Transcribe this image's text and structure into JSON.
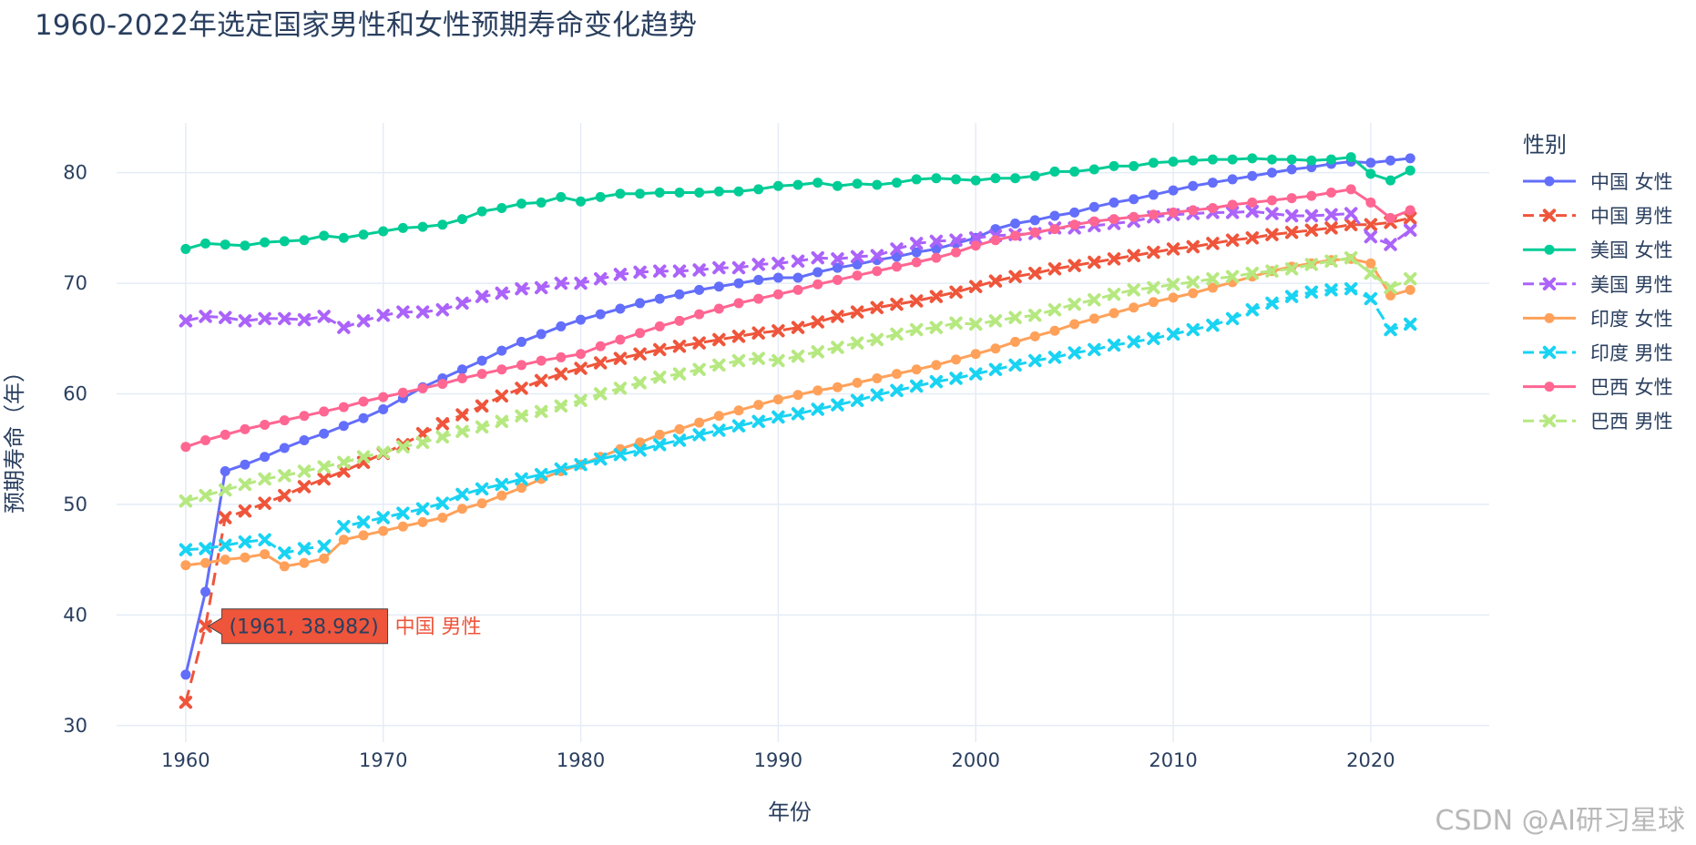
{
  "page": {
    "title": "1960-2022年选定国家男性和女性预期寿命变化趋势",
    "watermark": "CSDN @AI研习星球"
  },
  "chart_data": {
    "type": "line",
    "title": "1960-2022年选定国家男性和女性预期寿命变化趋势",
    "xlabel": "年份",
    "ylabel": "预期寿命（年）",
    "xlim": [
      1956.5,
      2026
    ],
    "ylim": [
      28.5,
      84.5
    ],
    "xticks": [
      1960,
      1970,
      1980,
      1990,
      2000,
      2010,
      2020
    ],
    "yticks": [
      30,
      40,
      50,
      60,
      70,
      80
    ],
    "grid": true,
    "legend": {
      "title": "性别",
      "position": "right"
    },
    "x": [
      1960,
      1961,
      1962,
      1963,
      1964,
      1965,
      1966,
      1967,
      1968,
      1969,
      1970,
      1971,
      1972,
      1973,
      1974,
      1975,
      1976,
      1977,
      1978,
      1979,
      1980,
      1981,
      1982,
      1983,
      1984,
      1985,
      1986,
      1987,
      1988,
      1989,
      1990,
      1991,
      1992,
      1993,
      1994,
      1995,
      1996,
      1997,
      1998,
      1999,
      2000,
      2001,
      2002,
      2003,
      2004,
      2005,
      2006,
      2007,
      2008,
      2009,
      2010,
      2011,
      2012,
      2013,
      2014,
      2015,
      2016,
      2017,
      2018,
      2019,
      2020,
      2021,
      2022
    ],
    "series": [
      {
        "name": "中国 女性",
        "color": "#636efa",
        "dash": "solid",
        "marker": "circle",
        "values": [
          34.6,
          42.1,
          53.0,
          53.6,
          54.3,
          55.1,
          55.8,
          56.4,
          57.1,
          57.8,
          58.6,
          59.6,
          60.6,
          61.4,
          62.2,
          63.0,
          63.9,
          64.7,
          65.4,
          66.1,
          66.7,
          67.2,
          67.7,
          68.2,
          68.6,
          69.0,
          69.4,
          69.7,
          70.0,
          70.3,
          70.5,
          70.5,
          71.0,
          71.4,
          71.7,
          72.1,
          72.4,
          72.8,
          73.1,
          73.6,
          74.1,
          74.9,
          75.4,
          75.7,
          76.1,
          76.4,
          76.9,
          77.3,
          77.6,
          78.0,
          78.4,
          78.8,
          79.1,
          79.4,
          79.7,
          80.0,
          80.3,
          80.5,
          80.8,
          81.0,
          80.9,
          81.1,
          81.3
        ]
      },
      {
        "name": "中国 男性",
        "color": "#ef553b",
        "dash": "dash",
        "marker": "x",
        "values": [
          32.1,
          38.982,
          48.8,
          49.4,
          50.1,
          50.8,
          51.6,
          52.3,
          53.0,
          53.8,
          54.6,
          55.4,
          56.4,
          57.3,
          58.1,
          58.9,
          59.8,
          60.5,
          61.2,
          61.8,
          62.3,
          62.8,
          63.2,
          63.6,
          64.0,
          64.3,
          64.6,
          64.9,
          65.2,
          65.5,
          65.7,
          66.0,
          66.5,
          67.0,
          67.4,
          67.8,
          68.1,
          68.4,
          68.8,
          69.2,
          69.7,
          70.2,
          70.6,
          70.9,
          71.3,
          71.6,
          71.9,
          72.2,
          72.5,
          72.8,
          73.1,
          73.3,
          73.6,
          73.9,
          74.1,
          74.4,
          74.6,
          74.8,
          75.0,
          75.3,
          75.3,
          75.5,
          75.9
        ]
      },
      {
        "name": "美国 女性",
        "color": "#00cc96",
        "dash": "solid",
        "marker": "circle",
        "values": [
          73.1,
          73.6,
          73.5,
          73.4,
          73.7,
          73.8,
          73.9,
          74.3,
          74.1,
          74.4,
          74.7,
          75.0,
          75.1,
          75.3,
          75.8,
          76.5,
          76.8,
          77.2,
          77.3,
          77.8,
          77.4,
          77.8,
          78.1,
          78.1,
          78.2,
          78.2,
          78.2,
          78.3,
          78.3,
          78.5,
          78.8,
          78.9,
          79.1,
          78.8,
          79.0,
          78.9,
          79.1,
          79.4,
          79.5,
          79.4,
          79.3,
          79.5,
          79.5,
          79.7,
          80.1,
          80.1,
          80.3,
          80.6,
          80.6,
          80.9,
          81.0,
          81.1,
          81.2,
          81.2,
          81.3,
          81.2,
          81.2,
          81.1,
          81.2,
          81.4,
          79.9,
          79.3,
          80.2
        ]
      },
      {
        "name": "美国 男性",
        "color": "#ab63fa",
        "dash": "dash",
        "marker": "x",
        "values": [
          66.6,
          67.0,
          66.9,
          66.6,
          66.8,
          66.8,
          66.7,
          67.0,
          66.0,
          66.6,
          67.1,
          67.4,
          67.4,
          67.6,
          68.2,
          68.8,
          69.1,
          69.5,
          69.6,
          70.0,
          70.0,
          70.4,
          70.8,
          71.0,
          71.1,
          71.1,
          71.2,
          71.4,
          71.4,
          71.7,
          71.8,
          72.0,
          72.3,
          72.2,
          72.4,
          72.5,
          73.1,
          73.6,
          73.8,
          73.9,
          74.1,
          74.3,
          74.4,
          74.5,
          75.0,
          75.0,
          75.2,
          75.4,
          75.6,
          76.0,
          76.2,
          76.3,
          76.4,
          76.4,
          76.5,
          76.3,
          76.1,
          76.1,
          76.2,
          76.3,
          74.2,
          73.5,
          74.8
        ]
      },
      {
        "name": "印度 女性",
        "color": "#ffa15a",
        "dash": "solid",
        "marker": "circle",
        "values": [
          44.5,
          44.7,
          45.0,
          45.2,
          45.5,
          44.4,
          44.7,
          45.1,
          46.8,
          47.2,
          47.6,
          48.0,
          48.4,
          48.8,
          49.6,
          50.1,
          50.8,
          51.5,
          52.3,
          53.0,
          53.6,
          54.3,
          55.0,
          55.6,
          56.3,
          56.8,
          57.4,
          58.0,
          58.5,
          59.0,
          59.5,
          59.9,
          60.3,
          60.6,
          61.0,
          61.4,
          61.8,
          62.2,
          62.6,
          63.1,
          63.6,
          64.1,
          64.7,
          65.2,
          65.7,
          66.3,
          66.8,
          67.3,
          67.8,
          68.3,
          68.7,
          69.1,
          69.6,
          70.1,
          70.6,
          71.1,
          71.5,
          71.8,
          72.1,
          72.2,
          71.8,
          68.9,
          69.4
        ]
      },
      {
        "name": "印度 男性",
        "color": "#19d3f3",
        "dash": "dash",
        "marker": "x",
        "values": [
          45.9,
          46.0,
          46.3,
          46.6,
          46.8,
          45.6,
          46.0,
          46.2,
          48.0,
          48.4,
          48.8,
          49.2,
          49.6,
          50.1,
          50.9,
          51.4,
          51.8,
          52.3,
          52.7,
          53.2,
          53.6,
          54.1,
          54.5,
          54.9,
          55.4,
          55.8,
          56.3,
          56.7,
          57.1,
          57.5,
          57.9,
          58.2,
          58.6,
          59.0,
          59.4,
          59.9,
          60.3,
          60.7,
          61.1,
          61.4,
          61.8,
          62.2,
          62.6,
          63.0,
          63.3,
          63.7,
          64.0,
          64.4,
          64.7,
          65.0,
          65.4,
          65.8,
          66.2,
          66.8,
          67.6,
          68.2,
          68.8,
          69.2,
          69.4,
          69.5,
          68.6,
          65.8,
          66.3
        ]
      },
      {
        "name": "巴西 女性",
        "color": "#ff6692",
        "dash": "solid",
        "marker": "circle",
        "values": [
          55.2,
          55.8,
          56.3,
          56.8,
          57.2,
          57.6,
          58.0,
          58.4,
          58.8,
          59.3,
          59.7,
          60.1,
          60.5,
          60.9,
          61.4,
          61.8,
          62.2,
          62.6,
          63.0,
          63.3,
          63.6,
          64.3,
          64.9,
          65.5,
          66.1,
          66.6,
          67.2,
          67.7,
          68.2,
          68.6,
          69.0,
          69.4,
          69.9,
          70.3,
          70.7,
          71.1,
          71.5,
          71.9,
          72.3,
          72.8,
          73.4,
          73.9,
          74.3,
          74.6,
          74.9,
          75.3,
          75.6,
          75.8,
          76.0,
          76.2,
          76.4,
          76.6,
          76.8,
          77.1,
          77.3,
          77.5,
          77.7,
          77.9,
          78.2,
          78.5,
          77.3,
          75.9,
          76.6
        ]
      },
      {
        "name": "巴西 男性",
        "color": "#b6e880",
        "dash": "dash",
        "marker": "x",
        "values": [
          50.3,
          50.8,
          51.3,
          51.8,
          52.3,
          52.6,
          53.0,
          53.4,
          53.8,
          54.3,
          54.7,
          55.2,
          55.6,
          56.1,
          56.6,
          57.0,
          57.5,
          58.0,
          58.4,
          58.9,
          59.4,
          60.0,
          60.5,
          61.0,
          61.5,
          61.8,
          62.2,
          62.6,
          63.0,
          63.2,
          63.0,
          63.4,
          63.8,
          64.2,
          64.6,
          64.9,
          65.4,
          65.8,
          66.0,
          66.4,
          66.3,
          66.6,
          66.9,
          67.1,
          67.6,
          68.1,
          68.5,
          69.0,
          69.4,
          69.6,
          69.9,
          70.1,
          70.4,
          70.6,
          70.9,
          71.1,
          71.3,
          71.7,
          72.0,
          72.3,
          70.9,
          69.6,
          70.4
        ]
      }
    ],
    "hover": {
      "series": "中国 男性",
      "x": 1961,
      "y": 38.982,
      "label": "(1961, 38.982)"
    }
  }
}
